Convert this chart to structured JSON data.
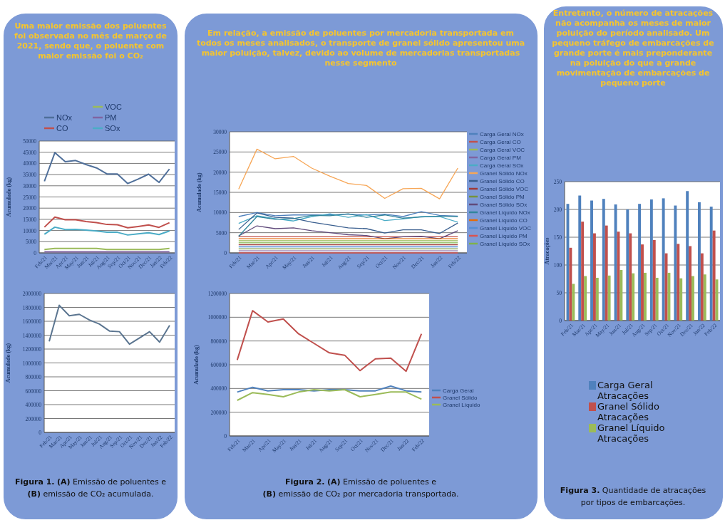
{
  "chart_data": [
    {
      "type": "line",
      "title": "Uma maior emissão dos poluentes foi observada no mês de março de 2021, sendo que, o poluente com maior emissão foi o CO₂",
      "ylabel": "Acumulado (kg)",
      "categories": [
        "Feb/21",
        "Mar/21",
        "Apr/21",
        "May/21",
        "Jun/21",
        "Jul/21",
        "Aug/21",
        "Sep/21",
        "Oct/21",
        "Nov/21",
        "Dec/21",
        "Jan/22",
        "Feb/22"
      ],
      "ylim": [
        0,
        50000
      ],
      "yticks": [
        0,
        5000,
        10000,
        15000,
        20000,
        25000,
        30000,
        35000,
        40000,
        45000,
        50000
      ],
      "grid": true,
      "legend": "top",
      "marker": "none",
      "series": [
        {
          "name": "NOx",
          "color": "#4f6f9a",
          "values": [
            32000,
            44800,
            40800,
            41300,
            39500,
            38000,
            35300,
            35300,
            31000,
            33000,
            35200,
            31500,
            37500
          ]
        },
        {
          "name": "CO",
          "color": "#c0504d",
          "values": [
            11500,
            16000,
            14800,
            14800,
            14000,
            13500,
            12700,
            12600,
            11200,
            11800,
            12500,
            11400,
            13500
          ]
        },
        {
          "name": "VOC",
          "color": "#9bbb59",
          "values": [
            1500,
            2000,
            2000,
            2000,
            2000,
            2000,
            1500,
            1500,
            1500,
            1500,
            1500,
            1500,
            2000
          ]
        },
        {
          "name": "PM",
          "color": "#8064a2",
          "values": [
            500,
            500,
            500,
            500,
            500,
            500,
            500,
            500,
            500,
            500,
            500,
            500,
            500
          ]
        },
        {
          "name": "SOx",
          "color": "#4bacc6",
          "values": [
            8300,
            11500,
            10400,
            10500,
            10200,
            9800,
            9200,
            9200,
            8000,
            8500,
            9000,
            8200,
            9800
          ]
        }
      ]
    },
    {
      "type": "line",
      "ylabel": "Acumulado (kg)",
      "categories": [
        "Feb/21",
        "Mar/21",
        "Apr/21",
        "May/21",
        "Jun/21",
        "Jul/21",
        "Aug/21",
        "Sep/21",
        "Oct/21",
        "Nov/21",
        "Dec/21",
        "Jan/22",
        "Feb/22"
      ],
      "ylim": [
        0,
        2000000
      ],
      "yticks": [
        0,
        200000,
        400000,
        600000,
        800000,
        1000000,
        1200000,
        1400000,
        1600000,
        1800000,
        2000000
      ],
      "grid": true,
      "marker": "none",
      "series": [
        {
          "color": "#5b7590",
          "values": [
            1310000,
            1830000,
            1680000,
            1700000,
            1620000,
            1560000,
            1460000,
            1450000,
            1270000,
            1360000,
            1450000,
            1300000,
            1540000
          ]
        }
      ],
      "annotations": [
        "Figura 1. (A) Emissão de poluentes e",
        "(B) emissão de CO₂ acumulada."
      ]
    },
    {
      "type": "line",
      "title": "Em relação, a emissão de poluentes por mercadoria transportada em todos os meses analisados, o transporte de granel sólido apresentou uma maior poluição, talvez, devido ao volume de mercadorias transportadas nesse segmento",
      "ylabel": "Acumulado (kg)",
      "categories": [
        "Feb/21",
        "Mar/21",
        "Apr/21",
        "May/21",
        "Jun/21",
        "Jul/21",
        "Aug/21",
        "Sep/21",
        "Oct/21",
        "Nov/21",
        "Dec/21",
        "Jan/22",
        "Feb/22"
      ],
      "ylim": [
        0,
        30000
      ],
      "yticks": [
        0,
        5000,
        10000,
        15000,
        20000,
        25000,
        30000
      ],
      "grid": true,
      "legend": "right",
      "marker": "none",
      "series": [
        {
          "name": "Carga Geral  NOx",
          "color": "#4f81bd",
          "values": [
            9000,
            10000,
            9200,
            9400,
            9400,
            9400,
            9600,
            9400,
            9600,
            9000,
            10200,
            9300,
            9100
          ]
        },
        {
          "name": "Carga Geral  CO",
          "color": "#c0504d",
          "values": [
            4000,
            4000,
            4000,
            4000,
            4000,
            4000,
            4000,
            4000,
            4000,
            4000,
            4000,
            4000,
            4000
          ]
        },
        {
          "name": "Carga Geral  VOC",
          "color": "#9bbb59",
          "values": [
            3000,
            3000,
            3000,
            3000,
            3000,
            3000,
            3000,
            3000,
            3000,
            3000,
            3000,
            3000,
            3000
          ]
        },
        {
          "name": "Carga Geral  PM",
          "color": "#8064a2",
          "values": [
            500,
            500,
            500,
            500,
            500,
            500,
            500,
            500,
            500,
            500,
            500,
            500,
            500
          ]
        },
        {
          "name": "Carga Geral  SOx",
          "color": "#4bacc6",
          "values": [
            7300,
            9200,
            8500,
            7900,
            9000,
            9700,
            8800,
            9500,
            8000,
            8400,
            9000,
            9000,
            7600
          ]
        },
        {
          "name": "Granel Sólido  NOx",
          "color": "#f7a656",
          "values": [
            15800,
            25700,
            23300,
            23900,
            21000,
            19000,
            17200,
            16700,
            13500,
            15900,
            16000,
            13400,
            21000
          ]
        },
        {
          "name": "Granel Sólido  CO",
          "color": "#3a5f8f",
          "values": [
            5800,
            9900,
            8800,
            8600,
            7600,
            6900,
            6200,
            6000,
            4900,
            5700,
            5700,
            4800,
            7400
          ]
        },
        {
          "name": "Granel Sólido  VOC",
          "color": "#a03a36",
          "values": [
            2000,
            2000,
            2000,
            2000,
            2000,
            2000,
            2000,
            2000,
            2000,
            2000,
            2000,
            2000,
            2000
          ]
        },
        {
          "name": "Granel Sólido  PM",
          "color": "#76933c",
          "values": [
            1000,
            1000,
            1000,
            1000,
            1000,
            1000,
            1000,
            1000,
            1000,
            1000,
            1000,
            1000,
            1000
          ]
        },
        {
          "name": "Granel Sólido  SOx",
          "color": "#604a7b",
          "values": [
            4200,
            6700,
            6000,
            6200,
            5500,
            5000,
            4500,
            4300,
            3500,
            4000,
            4100,
            3500,
            5500
          ]
        },
        {
          "name": "Granel Líquido NOx",
          "color": "#31859c",
          "values": [
            4100,
            9000,
            8300,
            8500,
            9300,
            9200,
            9700,
            8800,
            9400,
            8600,
            8900,
            9100,
            9000
          ]
        },
        {
          "name": "Granel Líquido CO",
          "color": "#e46c0a",
          "values": [
            3500,
            3500,
            3500,
            3500,
            3500,
            3500,
            3500,
            3500,
            3500,
            3500,
            3500,
            3500,
            3500
          ]
        },
        {
          "name": "Granel Líquido VOC",
          "color": "#558ed5",
          "values": [
            1500,
            1500,
            1500,
            1500,
            1500,
            1500,
            1500,
            1500,
            1500,
            1500,
            1500,
            1500,
            1500
          ]
        },
        {
          "name": "Granel Líquido PM",
          "color": "#d9534f",
          "values": [
            0,
            0,
            0,
            0,
            0,
            0,
            0,
            0,
            0,
            0,
            0,
            0,
            0
          ]
        },
        {
          "name": "Granel Líquido SOx",
          "color": "#7fb24a",
          "values": [
            2500,
            2500,
            2500,
            2500,
            2500,
            2500,
            2500,
            2500,
            2500,
            2500,
            2500,
            2500,
            2500
          ]
        }
      ]
    },
    {
      "type": "line",
      "ylabel": "Acumulado (kg)",
      "categories": [
        "Feb/21",
        "Mar/21",
        "Apr/21",
        "May/21",
        "Jun/21",
        "Jul/21",
        "Aug/21",
        "Sep/21",
        "Oct/21",
        "Nov/21",
        "Dec/21",
        "Jan/22",
        "Feb/22"
      ],
      "ylim": [
        0,
        1200000
      ],
      "yticks": [
        0,
        200000,
        400000,
        600000,
        800000,
        1000000,
        1200000
      ],
      "grid": true,
      "legend": "right",
      "marker": "none",
      "series": [
        {
          "name": "Carga Geral",
          "color": "#4f81bd",
          "values": [
            370000,
            410000,
            380000,
            390000,
            390000,
            380000,
            390000,
            390000,
            380000,
            380000,
            420000,
            380000,
            370000
          ]
        },
        {
          "name": "Granel Sólido",
          "color": "#c0504d",
          "values": [
            640000,
            1055000,
            960000,
            985000,
            860000,
            780000,
            700000,
            680000,
            550000,
            650000,
            655000,
            545000,
            860000
          ]
        },
        {
          "name": "Granel Líquido",
          "color": "#9bbb59",
          "values": [
            300000,
            365000,
            350000,
            330000,
            370000,
            390000,
            380000,
            390000,
            330000,
            350000,
            370000,
            370000,
            310000
          ]
        }
      ],
      "annotations": [
        "Figura 2. (A) Emissão de poluentes e",
        "(B) emissão de CO₂ por mercadoria transportada."
      ]
    },
    {
      "type": "bar",
      "title": "Entretanto, o número de atracações não acompanha os meses de maior poluição do período analisado. Um pequeno tráfego de embarcações de grande porte é mais preponderante na poluição do que a grande movimentação de embarcações de pequeno porte",
      "ylabel": "Atracações",
      "categories": [
        "Feb/21",
        "Mar/21",
        "Apr/21",
        "May/21",
        "Jun/21",
        "Jul/21",
        "Aug/21",
        "Sep/21",
        "Oct/21",
        "Nov/21",
        "Dec/21",
        "Jan/22",
        "Feb/22"
      ],
      "ylim": [
        0,
        250
      ],
      "yticks": [
        0,
        50,
        100,
        150,
        200,
        250
      ],
      "grid": true,
      "legend": "bottom",
      "series": [
        {
          "name": "Carga Geral Atracações",
          "color": "#4f81bd",
          "values": [
            210,
            225,
            216,
            219,
            209,
            200,
            210,
            218,
            220,
            207,
            233,
            213,
            205
          ]
        },
        {
          "name": "Granel Sólido Atracações",
          "color": "#c0504d",
          "values": [
            131,
            178,
            157,
            171,
            160,
            157,
            137,
            145,
            121,
            138,
            134,
            121,
            162
          ]
        },
        {
          "name": "Granel Líquido Atracações",
          "color": "#9bbb59",
          "values": [
            66,
            80,
            77,
            81,
            91,
            85,
            86,
            77,
            86,
            76,
            80,
            83,
            74
          ]
        }
      ],
      "annotations": [
        "Figura 3.  Quantidade de atracações",
        "por tipos de embarcações."
      ]
    }
  ]
}
